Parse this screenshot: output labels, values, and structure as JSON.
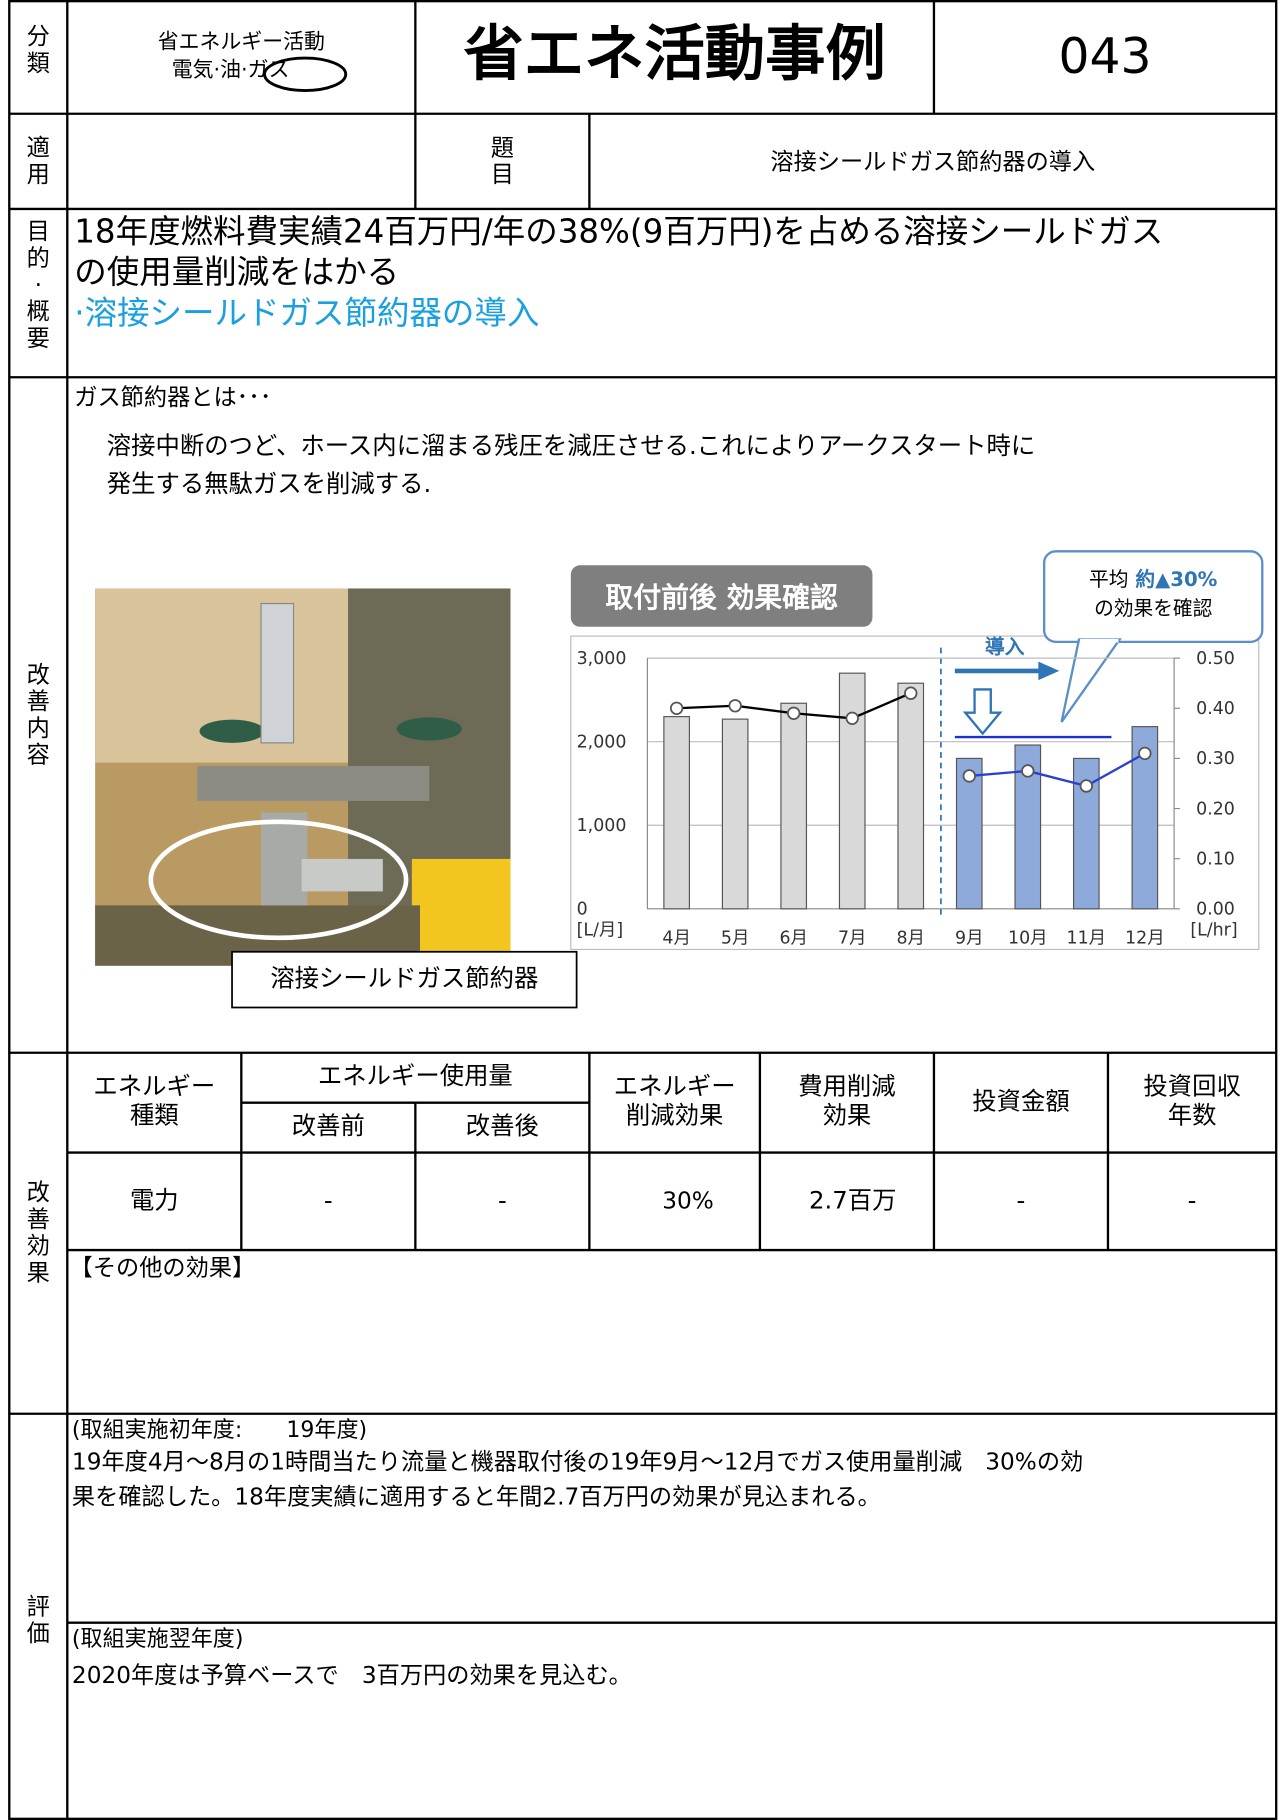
{
  "header": {
    "category_label": "分類",
    "category": "省エネルギー活動",
    "category_sub": "電気·油·",
    "category_circled": "ガス",
    "title": "省エネ活動事例",
    "number": "043"
  },
  "row2": {
    "apply_label": "適用",
    "subject_label": "題目",
    "subject": "溶接シールドガス節約器の導入"
  },
  "purpose": {
    "label": "目的·概要",
    "lines": [
      "18年度燃料費実績24百万円/年の38%(9百万円)を占める溶接シールドガス",
      "の使用量削減をはかる"
    ],
    "highlight": "·溶接シールドガス節約器の導入"
  },
  "content": {
    "label": "改善内容",
    "heading": "ガス節約器とは･･･",
    "lines": [
      "溶接中断のつど、ホース内に溜まる残圧を減圧させる.これによりアークスタート時に",
      "発生する無駄ガスを削減する."
    ],
    "photo_caption": "溶接シールドガス節約器"
  },
  "effect": {
    "label": "改善効果",
    "headers": [
      [
        "エネルギー",
        "種類"
      ],
      [
        "エネルギー使用量"
      ],
      [
        "改善前"
      ],
      [
        "改善後"
      ],
      [
        "エネルギー",
        "削減効果"
      ],
      [
        "費用削減",
        "効果"
      ],
      [
        "投資金額"
      ],
      [
        "投資回収",
        "年数"
      ]
    ],
    "row": [
      "電力",
      "-",
      "-",
      "30%",
      "2.7百万",
      "-",
      "-"
    ],
    "other": "【その他の効果】"
  },
  "evaluation": {
    "label": "評価",
    "first_title": "(取組実施初年度:　　19年度)",
    "first_lines": [
      "19年度4月～8月の1時間当たり流量と機器取付後の19年9月～12月でガス使用量削減　30%の効",
      "果を確認した。18年度実績に適用すると年間2.7百万円の効果が見込まれる。"
    ],
    "second_title": "(取組実施翌年度)",
    "second_lines": [
      "2020年度は予算ベースで　3百万円の効果を見込む。"
    ]
  },
  "chart_data": {
    "type": "combo",
    "title": "取付前後 効果確認",
    "y_label": "[L/月]",
    "y2_label": "[L/hr]",
    "annotations": {
      "intro": "導入",
      "callout_prefix": "平均",
      "callout_value": "約▲30%",
      "callout_suffix": "の効果を確認"
    },
    "categories": [
      "4月",
      "5月",
      "6月",
      "7月",
      "8月",
      "9月",
      "10月",
      "11月",
      "12月"
    ],
    "ylim": [
      0,
      3000
    ],
    "yticks": [
      0,
      {
        "value": 1000,
        "label": "1,000"
      },
      {
        "value": 2000,
        "label": "2,000"
      },
      {
        "value": 3000,
        "label": "3,000"
      }
    ],
    "y2lim": [
      0,
      0.5
    ],
    "y2ticks": [
      {
        "value": 0,
        "label": "0.00"
      },
      {
        "value": 0.1,
        "label": "0.10"
      },
      {
        "value": 0.2,
        "label": "0.20"
      },
      {
        "value": 0.3,
        "label": "0.30"
      },
      {
        "value": 0.4,
        "label": "0.40"
      },
      {
        "value": 0.5,
        "label": "0.50"
      }
    ],
    "grid": true,
    "series": [
      {
        "type": "bar",
        "color": "#d9d9d9",
        "values": [
          2300,
          2270,
          2460,
          2820,
          2700,
          null,
          null,
          null,
          null
        ]
      },
      {
        "type": "bar",
        "color": "#8eaadb",
        "values": [
          null,
          null,
          null,
          null,
          null,
          1800,
          1960,
          1800,
          2180
        ]
      },
      {
        "type": "line",
        "axis": "y2",
        "color": "#000000",
        "values": [
          0.4,
          0.405,
          0.39,
          0.38,
          0.43,
          null,
          null,
          null,
          null
        ]
      },
      {
        "type": "line",
        "axis": "y2",
        "color": "#2b3fd0",
        "values": [
          null,
          null,
          null,
          null,
          null,
          0.265,
          0.275,
          0.245,
          0.31
        ]
      }
    ]
  }
}
